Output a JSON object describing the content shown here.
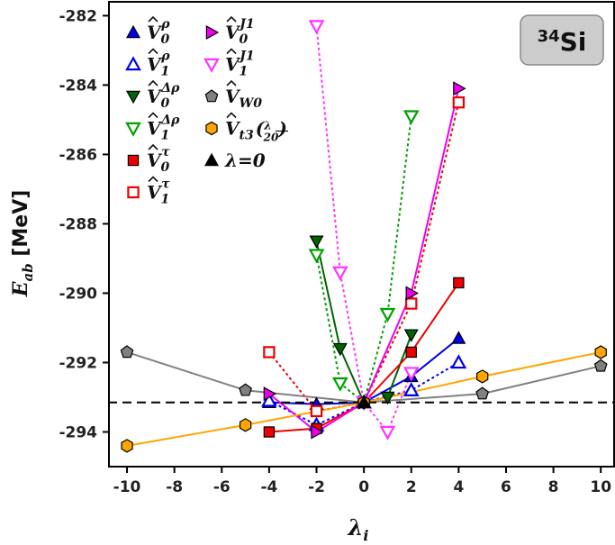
{
  "chart_data": {
    "type": "scatter",
    "title": "",
    "xlabel": "λi",
    "ylabel": "Eab [MeV]",
    "xlim": [
      -10.8,
      10.6
    ],
    "ylim": [
      -295.0,
      -281.6
    ],
    "xticks": [
      -10,
      -8,
      -6,
      -4,
      -2,
      0,
      2,
      4,
      6,
      8,
      10
    ],
    "xtick_labels": [
      "-10",
      "-8",
      "-6",
      "-4",
      "-2",
      "0",
      "2",
      "4",
      "6",
      "8",
      "10"
    ],
    "yticks": [
      -294,
      -292,
      -290,
      -288,
      -286,
      -284,
      -282
    ],
    "ytick_labels": [
      "-294",
      "-292",
      "-290",
      "-288",
      "-286",
      "-284",
      "-282"
    ],
    "grid": false,
    "legend_position": "top-left",
    "reference_line": {
      "y": -293.15,
      "style": "dashed",
      "color": "#000000"
    },
    "annotation": {
      "text": "Si",
      "superscript": "34",
      "position": "top-right"
    },
    "series": [
      {
        "name": "V0ρ",
        "color": "#0000ee",
        "marker": "triangle-up",
        "filled": true,
        "line": "solid",
        "x": [
          -4,
          -2,
          0,
          2,
          4
        ],
        "y": [
          -293.15,
          -293.2,
          -293.15,
          -292.4,
          -291.3
        ]
      },
      {
        "name": "V1ρ",
        "color": "#0000ee",
        "marker": "triangle-up",
        "filled": false,
        "line": "dotted",
        "x": [
          -4,
          -2,
          0,
          2,
          4
        ],
        "y": [
          -293.1,
          -293.8,
          -293.15,
          -292.8,
          -292.0
        ]
      },
      {
        "name": "V0Δρ",
        "color": "#006400",
        "marker": "triangle-down",
        "filled": true,
        "line": "solid",
        "x": [
          -2,
          -1,
          0,
          1,
          2
        ],
        "y": [
          -288.5,
          -291.6,
          -293.15,
          -293.0,
          -291.2
        ]
      },
      {
        "name": "V1Δρ",
        "color": "#00a000",
        "marker": "triangle-down",
        "filled": false,
        "line": "dotted",
        "x": [
          -2,
          -1,
          0,
          1,
          2
        ],
        "y": [
          -288.9,
          -292.6,
          -293.15,
          -290.6,
          -284.9
        ]
      },
      {
        "name": "V0τ",
        "color": "#ee0000",
        "marker": "square",
        "filled": true,
        "line": "solid",
        "x": [
          -4,
          -2,
          0,
          2,
          4
        ],
        "y": [
          -294.0,
          -293.9,
          -293.15,
          -291.7,
          -289.7
        ]
      },
      {
        "name": "V1τ",
        "color": "#ee0000",
        "marker": "square",
        "filled": false,
        "line": "dotted",
        "x": [
          -4,
          -2,
          0,
          2,
          4
        ],
        "y": [
          -291.7,
          -293.4,
          -293.15,
          -290.3,
          -284.5
        ]
      },
      {
        "name": "V0J1",
        "color": "#ee00ee",
        "marker": "triangle-right",
        "filled": true,
        "line": "solid",
        "x": [
          -4,
          -2,
          0,
          2,
          4
        ],
        "y": [
          -292.9,
          -294.0,
          -293.15,
          -290.0,
          -284.1
        ]
      },
      {
        "name": "V1J1",
        "color": "#ff33ff",
        "marker": "triangle-down",
        "filled": false,
        "line": "dotted",
        "x": [
          -2,
          -1,
          0,
          1,
          2
        ],
        "y": [
          -282.3,
          -289.4,
          -293.15,
          -294.0,
          -292.3
        ]
      },
      {
        "name": "VW0",
        "color": "#808080",
        "marker": "pentagon",
        "filled": true,
        "line": "solid",
        "x": [
          -10,
          -5,
          0,
          5,
          10
        ],
        "y": [
          -291.7,
          -292.8,
          -293.15,
          -292.9,
          -292.1
        ]
      },
      {
        "name": "Vt3(λ/20)",
        "color": "#ffa500",
        "marker": "hexagon",
        "filled": true,
        "line": "solid",
        "x": [
          -10,
          -5,
          0,
          5,
          10
        ],
        "y": [
          -294.4,
          -293.8,
          -293.15,
          -292.4,
          -291.7
        ]
      },
      {
        "name": "λ=0",
        "color": "#000000",
        "marker": "triangle-up",
        "filled": true,
        "line": "none",
        "x": [
          0
        ],
        "y": [
          -293.15
        ]
      }
    ],
    "legend_col1": [
      {
        "series": 0,
        "base": "V",
        "sub": "0",
        "sup": "ρ",
        "hat": true
      },
      {
        "series": 1,
        "base": "V",
        "sub": "1",
        "sup": "ρ",
        "hat": true
      },
      {
        "series": 2,
        "base": "V",
        "sub": "0",
        "sup": "Δρ",
        "hat": true
      },
      {
        "series": 3,
        "base": "V",
        "sub": "1",
        "sup": "Δρ",
        "hat": true
      },
      {
        "series": 4,
        "base": "V",
        "sub": "0",
        "sup": "τ",
        "hat": true
      },
      {
        "series": 5,
        "base": "V",
        "sub": "1",
        "sup": "τ",
        "hat": true
      }
    ],
    "legend_col2": [
      {
        "series": 6,
        "base": "V",
        "sub": "0",
        "sup": "J1",
        "hat": true
      },
      {
        "series": 7,
        "base": "V",
        "sub": "1",
        "sup": "J1",
        "hat": true
      },
      {
        "series": 8,
        "base": "V",
        "sub": "W0",
        "sup": "",
        "hat": true
      },
      {
        "series": 9,
        "base": "V",
        "sub": "t3",
        "sup": "",
        "hat": true,
        "suffix_num": "λ",
        "suffix_den": "20"
      },
      {
        "series": 10,
        "base": "λ=0",
        "sub": "",
        "sup": "",
        "hat": false
      }
    ]
  }
}
